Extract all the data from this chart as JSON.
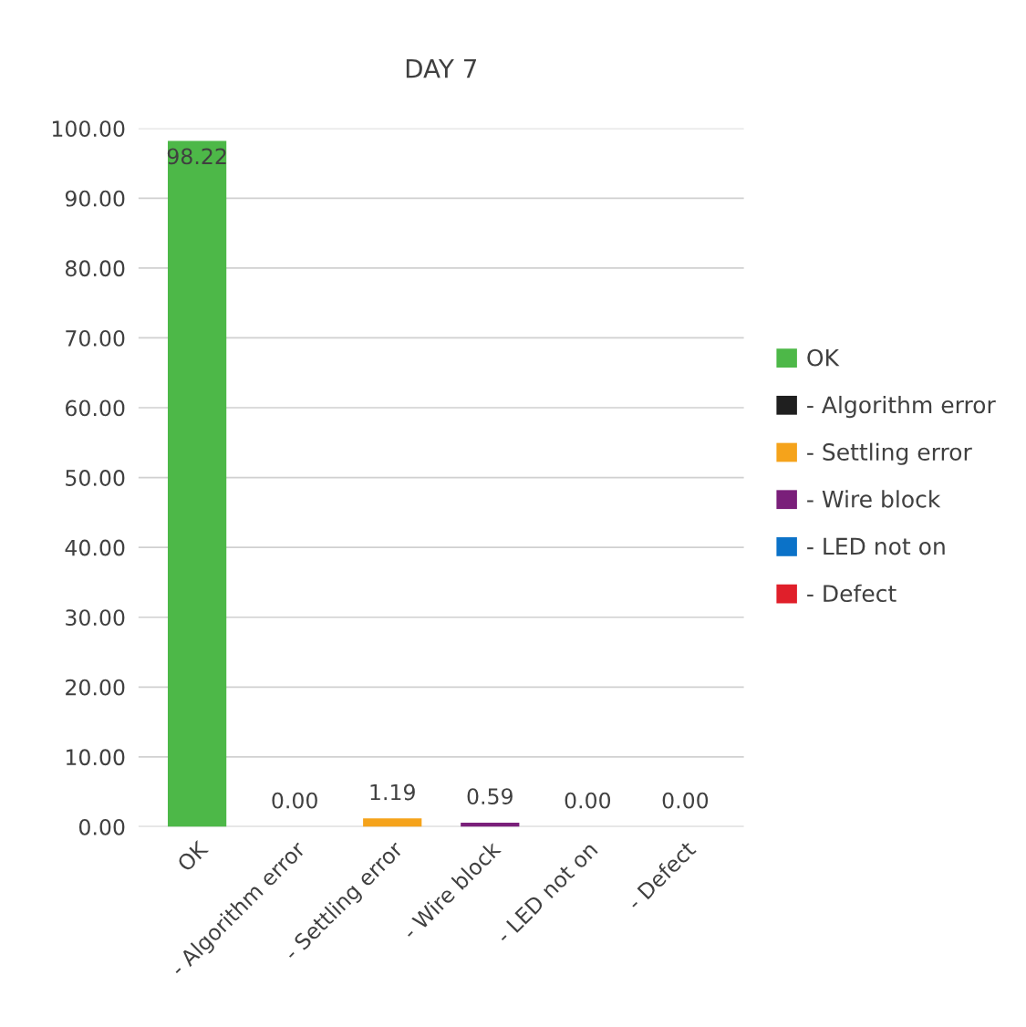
{
  "chart_data": {
    "type": "bar",
    "title": "DAY 7",
    "categories": [
      "OK",
      "- Algorithm error",
      "- Settling error",
      "- Wire block",
      "- LED not on",
      "- Defect"
    ],
    "series": [
      {
        "name": "OK",
        "color": "#4db848",
        "values": [
          98.22,
          null,
          null,
          null,
          null,
          null
        ],
        "value_labels": [
          "98.22",
          null,
          null,
          null,
          null,
          null
        ]
      },
      {
        "name": "- Algorithm error",
        "color": "#1f1f1f",
        "values": [
          null,
          0.0,
          null,
          null,
          null,
          null
        ],
        "value_labels": [
          null,
          "0.00",
          null,
          null,
          null,
          null
        ]
      },
      {
        "name": "- Settling error",
        "color": "#f5a31b",
        "values": [
          null,
          null,
          1.19,
          null,
          null,
          null
        ],
        "value_labels": [
          null,
          null,
          "1.19",
          null,
          null,
          null
        ]
      },
      {
        "name": "- Wire block",
        "color": "#7a1f7a",
        "values": [
          null,
          null,
          null,
          0.59,
          null,
          null
        ],
        "value_labels": [
          null,
          null,
          null,
          "0.59",
          null,
          null
        ]
      },
      {
        "name": "- LED not on",
        "color": "#0b72c8",
        "values": [
          null,
          null,
          null,
          null,
          0.0,
          null
        ],
        "value_labels": [
          null,
          null,
          null,
          null,
          "0.00",
          null
        ]
      },
      {
        "name": "- Defect",
        "color": "#e01f2a",
        "values": [
          null,
          null,
          null,
          null,
          null,
          0.0
        ],
        "value_labels": [
          null,
          null,
          null,
          null,
          null,
          "0.00"
        ]
      }
    ],
    "ylim": [
      0,
      100
    ],
    "yticks": [
      {
        "value": 0,
        "label": "0.00"
      },
      {
        "value": 10,
        "label": "10.00"
      },
      {
        "value": 20,
        "label": "20.00"
      },
      {
        "value": 30,
        "label": "30.00"
      },
      {
        "value": 40,
        "label": "40.00"
      },
      {
        "value": 50,
        "label": "50.00"
      },
      {
        "value": 60,
        "label": "60.00"
      },
      {
        "value": 70,
        "label": "70.00"
      },
      {
        "value": 80,
        "label": "80.00"
      },
      {
        "value": 90,
        "label": "90.00"
      },
      {
        "value": 100,
        "label": "100.00"
      }
    ],
    "grid": "y",
    "legend": "right"
  }
}
